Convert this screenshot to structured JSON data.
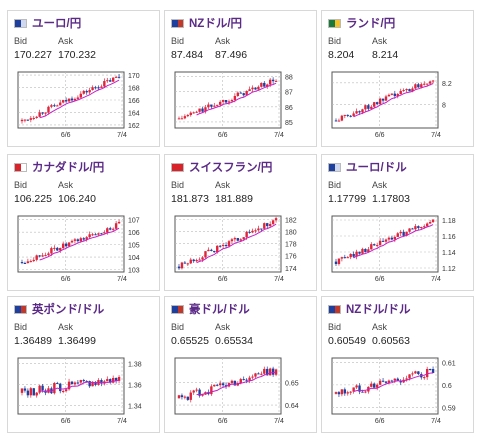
{
  "pairs": [
    {
      "name": "ユーロ/円",
      "bid": "170.227",
      "ask": "170.232",
      "flag": [
        "#1f3f9e",
        "#cfd8ee"
      ],
      "bid_label": "Bid",
      "ask_label": "Ask",
      "yticks": [
        "170",
        "168",
        "166",
        "164",
        "162"
      ],
      "ymin": 161.5,
      "ymax": 170.5,
      "xticks": [
        "6/6",
        "7/4"
      ],
      "start": 162.6,
      "end": 169.8,
      "trend": "up"
    },
    {
      "name": "NZドル/円",
      "bid": "87.484",
      "ask": "87.496",
      "flag": [
        "#1f3f9e",
        "#c0392b"
      ],
      "bid_label": "Bid",
      "ask_label": "Ask",
      "yticks": [
        "88",
        "87",
        "86",
        "85"
      ],
      "ymin": 84.6,
      "ymax": 88.3,
      "xticks": [
        "6/6",
        "7/4"
      ],
      "start": 85.2,
      "end": 87.8,
      "trend": "up"
    },
    {
      "name": "ランド/円",
      "bid": "8.204",
      "ask": "8.214",
      "flag": [
        "#1b7a3a",
        "#f2c12e"
      ],
      "bid_label": "Bid",
      "ask_label": "Ask",
      "yticks": [
        "8.2",
        "8"
      ],
      "ymin": 7.78,
      "ymax": 8.3,
      "xticks": [
        "6/6",
        "7/4"
      ],
      "start": 7.85,
      "end": 8.24,
      "trend": "up"
    },
    {
      "name": "カナダドル/円",
      "bid": "106.225",
      "ask": "106.240",
      "flag": [
        "#d8232a",
        "#ffffff"
      ],
      "bid_label": "Bid",
      "ask_label": "Ask",
      "yticks": [
        "107",
        "106",
        "105",
        "104",
        "103"
      ],
      "ymin": 102.8,
      "ymax": 107.3,
      "xticks": [
        "6/6",
        "7/4"
      ],
      "start": 103.6,
      "end": 106.6,
      "trend": "up"
    },
    {
      "name": "スイスフラン/円",
      "bid": "181.873",
      "ask": "181.889",
      "flag": [
        "#d8232a",
        "#d8232a"
      ],
      "bid_label": "Bid",
      "ask_label": "Ask",
      "yticks": [
        "182",
        "180",
        "178",
        "176",
        "174"
      ],
      "ymin": 173.3,
      "ymax": 182.6,
      "xticks": [
        "6/6",
        "7/4"
      ],
      "start": 174.2,
      "end": 181.9,
      "trend": "up"
    },
    {
      "name": "ユーロ/ドル",
      "bid": "1.17799",
      "ask": "1.17803",
      "flag": [
        "#1f3f9e",
        "#cfd8ee"
      ],
      "bid_label": "Bid",
      "ask_label": "Ask",
      "yticks": [
        "1.18",
        "1.16",
        "1.14",
        "1.12"
      ],
      "ymin": 1.115,
      "ymax": 1.185,
      "xticks": [
        "6/6",
        "7/4"
      ],
      "start": 1.128,
      "end": 1.179,
      "trend": "up"
    },
    {
      "name": "英ポンド/ドル",
      "bid": "1.36489",
      "ask": "1.36499",
      "flag": [
        "#1f3f9e",
        "#c0392b"
      ],
      "bid_label": "Bid",
      "ask_label": "Ask",
      "yticks": [
        "1.38",
        "1.36",
        "1.34"
      ],
      "ymin": 1.332,
      "ymax": 1.385,
      "xticks": [
        "6/6",
        "7/4"
      ],
      "start": 1.352,
      "end": 1.366,
      "trend": "mixed"
    },
    {
      "name": "豪ドル/ドル",
      "bid": "0.65525",
      "ask": "0.65534",
      "flag": [
        "#1f3f9e",
        "#c0392b"
      ],
      "bid_label": "Bid",
      "ask_label": "Ask",
      "yticks": [
        "0.65",
        "0.64"
      ],
      "ymin": 0.636,
      "ymax": 0.661,
      "xticks": [
        "6/6",
        "7/4"
      ],
      "start": 0.643,
      "end": 0.656,
      "trend": "mixed"
    },
    {
      "name": "NZドル/ドル",
      "bid": "0.60549",
      "ask": "0.60563",
      "flag": [
        "#1f3f9e",
        "#c0392b"
      ],
      "bid_label": "Bid",
      "ask_label": "Ask",
      "yticks": [
        "0.61",
        "0.6",
        "0.59"
      ],
      "ymin": 0.587,
      "ymax": 0.612,
      "xticks": [
        "6/6",
        "7/4"
      ],
      "start": 0.596,
      "end": 0.606,
      "trend": "mixed"
    }
  ],
  "colors": {
    "title": "#5b2a86",
    "up": "#e0243a",
    "down": "#1f3f9e",
    "ma": "#c71fc7",
    "grid": "#bbbbbb"
  }
}
